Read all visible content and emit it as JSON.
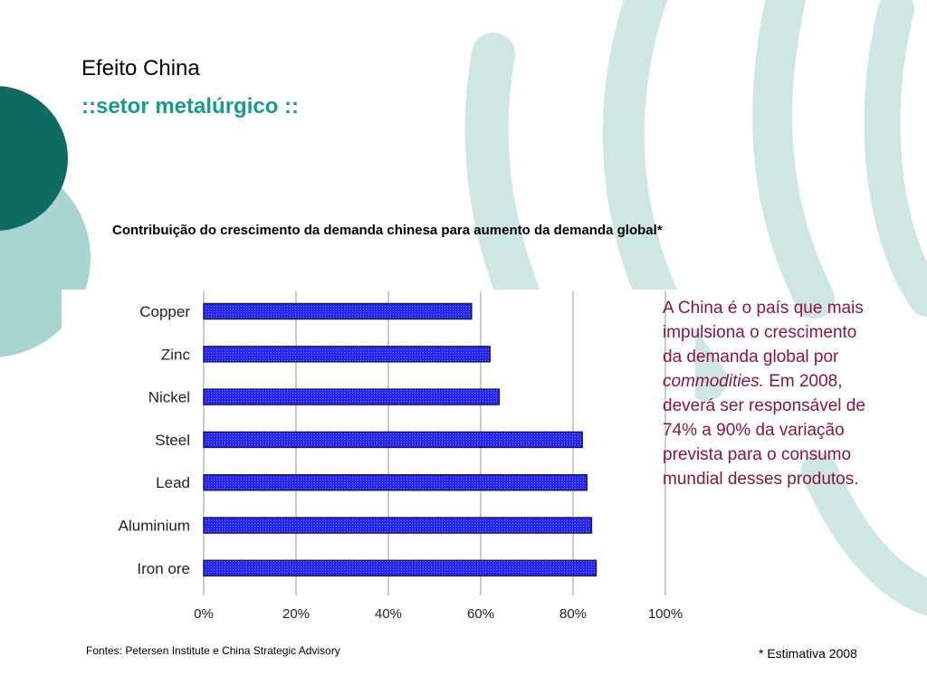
{
  "slide": {
    "title": "Efeito China",
    "subtitle": "::setor metalúrgico ::",
    "chart_caption": "Contribuição do crescimento da demanda chinesa para aumento da demanda global*",
    "side_text_before": "A China é o país que mais impulsiona o crescimento da demanda global por ",
    "side_text_italic": "commodities.",
    "side_text_after": " Em 2008, deverá ser responsável de 74% a 90% da variação prevista para o consumo mundial desses produtos.",
    "source": "Fontes: Petersen Institute e China Strategic Advisory",
    "footnote": "* Estimativa 2008"
  },
  "colors": {
    "bar_fill": "#2626f0",
    "bar_stroke": "#1a1a5a",
    "accent_teal": "#1a9a8e",
    "dark_teal": "#0f6b62",
    "text_red": "#8b1640"
  },
  "chart_data": {
    "type": "bar",
    "orientation": "horizontal",
    "categories": [
      "Copper",
      "Zinc",
      "Nickel",
      "Steel",
      "Lead",
      "Aluminium",
      "Iron ore"
    ],
    "values": [
      58,
      62,
      64,
      82,
      83,
      84,
      85
    ],
    "xlim": [
      0,
      100
    ],
    "x_ticks": [
      "0%",
      "20%",
      "40%",
      "60%",
      "80%",
      "100%"
    ],
    "grid": "vertical",
    "title": "Contribuição do crescimento da demanda chinesa para aumento da demanda global*"
  }
}
